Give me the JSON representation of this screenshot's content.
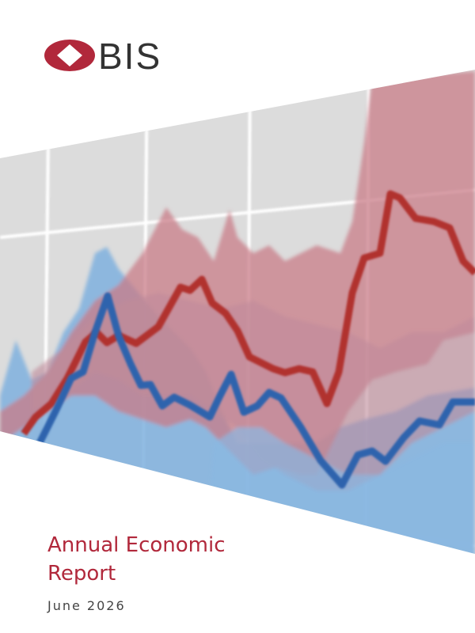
{
  "logo": {
    "text": "BIS"
  },
  "title_lines": [
    "Annual Economic",
    "Report"
  ],
  "date": "June 2026"
}
